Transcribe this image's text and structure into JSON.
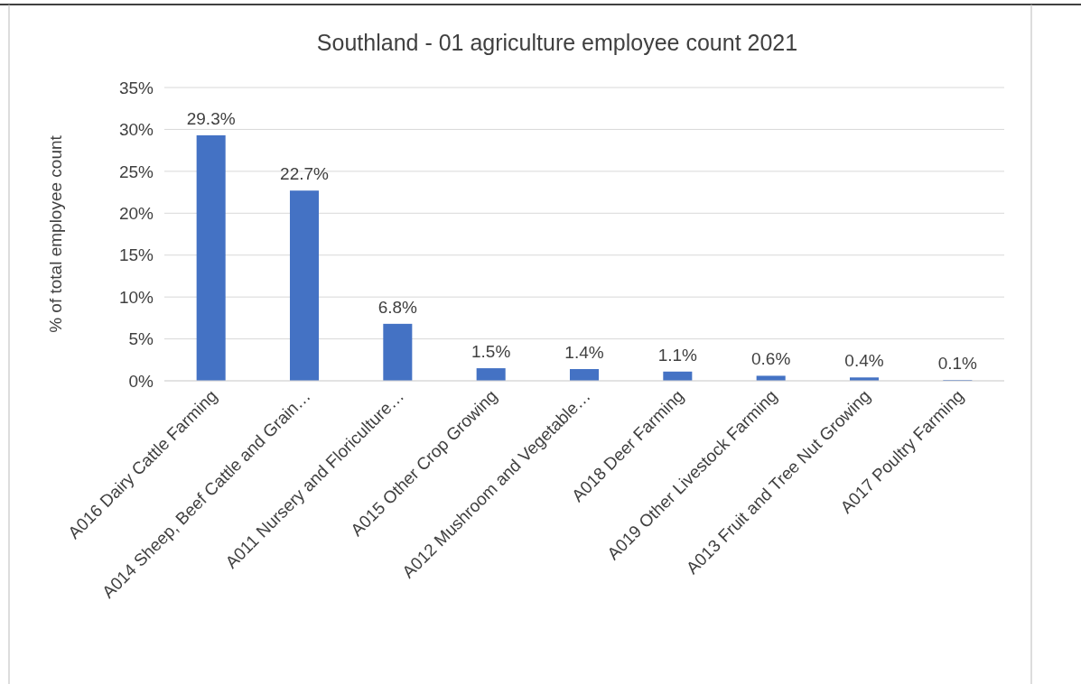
{
  "chart_data": {
    "type": "bar",
    "title": "Southland - 01 agriculture employee count 2021",
    "ylabel": "% of total employee count",
    "categories": [
      "A016 Dairy Cattle Farming",
      "A014 Sheep, Beef Cattle and Grain…",
      "A011 Nursery and Floriculture…",
      "A015 Other Crop Growing",
      "A012 Mushroom and Vegetable…",
      "A018 Deer Farming",
      "A019 Other Livestock Farming",
      "A013 Fruit and Tree Nut Growing",
      "A017 Poultry Farming"
    ],
    "values": [
      29.3,
      22.7,
      6.8,
      1.5,
      1.4,
      1.1,
      0.6,
      0.4,
      0.1
    ],
    "value_labels": [
      "29.3%",
      "22.7%",
      "6.8%",
      "1.5%",
      "1.4%",
      "1.1%",
      "0.6%",
      "0.4%",
      "0.1%"
    ],
    "color": "#4472c4",
    "ylim": [
      0,
      35
    ],
    "yticks": [
      {
        "value": 0,
        "label": "0%"
      },
      {
        "value": 5,
        "label": "5%"
      },
      {
        "value": 10,
        "label": "10%"
      },
      {
        "value": 15,
        "label": "15%"
      },
      {
        "value": 20,
        "label": "20%"
      },
      {
        "value": 25,
        "label": "25%"
      },
      {
        "value": 30,
        "label": "30%"
      },
      {
        "value": 35,
        "label": "35%"
      }
    ],
    "grid": "y"
  }
}
